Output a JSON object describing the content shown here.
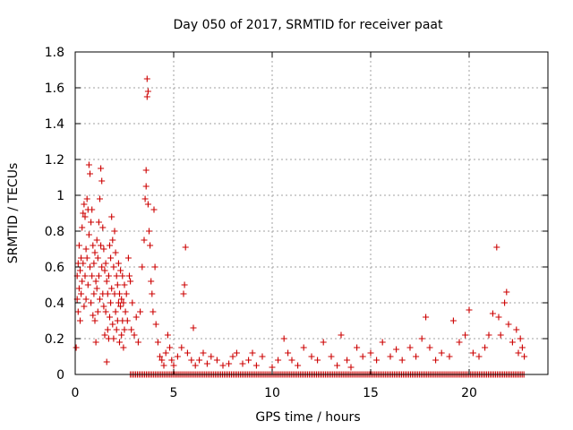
{
  "chart_data": {
    "type": "scatter",
    "title": "Day 050 of 2017, SRMTID for receiver paat",
    "xlabel": "GPS time / hours",
    "ylabel": "SRMTID / TECUs",
    "xlim": [
      0,
      24
    ],
    "ylim": [
      0,
      1.8
    ],
    "x_ticks": [
      0,
      5,
      10,
      15,
      20
    ],
    "x_tick_labels": [
      "0",
      "5",
      "10",
      "15",
      "20"
    ],
    "y_ticks": [
      0,
      0.2,
      0.4,
      0.6,
      0.8,
      1,
      1.2,
      1.4,
      1.6,
      1.8
    ],
    "y_tick_labels": [
      "0",
      "0.2",
      "0.4",
      "0.6",
      "0.8",
      "1",
      "1.2",
      "1.4",
      "1.6",
      "1.8"
    ],
    "grid": true,
    "marker": "+",
    "series": [
      {
        "name": "SRMTID",
        "color": "#cc0000",
        "points": [
          [
            0.05,
            0.15
          ],
          [
            0.1,
            0.55
          ],
          [
            0.1,
            0.42
          ],
          [
            0.15,
            0.62
          ],
          [
            0.15,
            0.35
          ],
          [
            0.2,
            0.48
          ],
          [
            0.2,
            0.72
          ],
          [
            0.25,
            0.58
          ],
          [
            0.25,
            0.3
          ],
          [
            0.3,
            0.65
          ],
          [
            0.3,
            0.45
          ],
          [
            0.35,
            0.52
          ],
          [
            0.35,
            0.82
          ],
          [
            0.4,
            0.9
          ],
          [
            0.4,
            0.62
          ],
          [
            0.45,
            0.95
          ],
          [
            0.45,
            0.38
          ],
          [
            0.5,
            0.88
          ],
          [
            0.5,
            0.55
          ],
          [
            0.55,
            0.7
          ],
          [
            0.55,
            0.42
          ],
          [
            0.6,
            0.98
          ],
          [
            0.6,
            0.65
          ],
          [
            0.65,
            0.92
          ],
          [
            0.65,
            0.5
          ],
          [
            0.7,
            1.17
          ],
          [
            0.7,
            0.78
          ],
          [
            0.75,
            1.12
          ],
          [
            0.75,
            0.6
          ],
          [
            0.8,
            0.85
          ],
          [
            0.8,
            0.4
          ],
          [
            0.85,
            0.92
          ],
          [
            0.85,
            0.55
          ],
          [
            0.9,
            0.72
          ],
          [
            0.9,
            0.33
          ],
          [
            0.95,
            0.62
          ],
          [
            0.95,
            0.45
          ],
          [
            1.0,
            0.68
          ],
          [
            1.0,
            0.3
          ],
          [
            1.05,
            0.52
          ],
          [
            1.05,
            0.18
          ],
          [
            1.1,
            0.75
          ],
          [
            1.1,
            0.48
          ],
          [
            1.15,
            0.65
          ],
          [
            1.15,
            0.35
          ],
          [
            1.2,
            0.85
          ],
          [
            1.2,
            0.55
          ],
          [
            1.25,
            0.98
          ],
          [
            1.25,
            0.42
          ],
          [
            1.3,
            1.15
          ],
          [
            1.3,
            0.72
          ],
          [
            1.35,
            1.08
          ],
          [
            1.35,
            0.6
          ],
          [
            1.4,
            0.82
          ],
          [
            1.4,
            0.45
          ],
          [
            1.45,
            0.7
          ],
          [
            1.45,
            0.38
          ],
          [
            1.5,
            0.58
          ],
          [
            1.5,
            0.22
          ],
          [
            1.55,
            0.62
          ],
          [
            1.55,
            0.35
          ],
          [
            1.6,
            0.52
          ],
          [
            1.6,
            0.07
          ],
          [
            1.65,
            0.45
          ],
          [
            1.65,
            0.25
          ],
          [
            1.7,
            0.55
          ],
          [
            1.7,
            0.2
          ],
          [
            1.75,
            0.72
          ],
          [
            1.75,
            0.32
          ],
          [
            1.8,
            0.65
          ],
          [
            1.8,
            0.4
          ],
          [
            1.85,
            0.88
          ],
          [
            1.85,
            0.48
          ],
          [
            1.9,
            0.75
          ],
          [
            1.9,
            0.28
          ],
          [
            1.95,
            0.6
          ],
          [
            1.95,
            0.2
          ],
          [
            2.0,
            0.8
          ],
          [
            2.0,
            0.45
          ],
          [
            2.05,
            0.68
          ],
          [
            2.05,
            0.35
          ],
          [
            2.1,
            0.55
          ],
          [
            2.1,
            0.25
          ],
          [
            2.15,
            0.5
          ],
          [
            2.15,
            0.3
          ],
          [
            2.2,
            0.62
          ],
          [
            2.2,
            0.4
          ],
          [
            2.25,
            0.45
          ],
          [
            2.25,
            0.18
          ],
          [
            2.3,
            0.58
          ],
          [
            2.3,
            0.38
          ],
          [
            2.35,
            0.42
          ],
          [
            2.35,
            0.22
          ],
          [
            2.4,
            0.55
          ],
          [
            2.4,
            0.3
          ],
          [
            2.45,
            0.4
          ],
          [
            2.45,
            0.15
          ],
          [
            2.5,
            0.5
          ],
          [
            2.5,
            0.25
          ],
          [
            2.55,
            0.35
          ],
          [
            2.6,
            0.45
          ],
          [
            2.65,
            0.3
          ],
          [
            2.7,
            0.65
          ],
          [
            2.75,
            0.55
          ],
          [
            2.8,
            0.52
          ],
          [
            2.85,
            0.25
          ],
          [
            2.9,
            0.4
          ],
          [
            3.0,
            0.22
          ],
          [
            3.1,
            0.32
          ],
          [
            3.2,
            0.18
          ],
          [
            3.3,
            0.35
          ],
          [
            3.4,
            0.6
          ],
          [
            3.5,
            0.75
          ],
          [
            3.55,
            0.98
          ],
          [
            3.6,
            1.05
          ],
          [
            3.6,
            1.14
          ],
          [
            3.65,
            1.65
          ],
          [
            3.65,
            1.55
          ],
          [
            3.7,
            1.58
          ],
          [
            3.7,
            0.95
          ],
          [
            3.75,
            0.8
          ],
          [
            3.8,
            0.72
          ],
          [
            3.85,
            0.52
          ],
          [
            3.9,
            0.45
          ],
          [
            3.95,
            0.35
          ],
          [
            4.0,
            0.92
          ],
          [
            4.05,
            0.6
          ],
          [
            4.1,
            0.28
          ],
          [
            4.2,
            0.18
          ],
          [
            4.3,
            0.1
          ],
          [
            4.4,
            0.08
          ],
          [
            4.5,
            0.05
          ],
          [
            4.6,
            0.12
          ],
          [
            4.7,
            0.22
          ],
          [
            4.8,
            0.15
          ],
          [
            4.9,
            0.08
          ],
          [
            5.0,
            0.05
          ],
          [
            5.2,
            0.1
          ],
          [
            5.4,
            0.15
          ],
          [
            5.5,
            0.45
          ],
          [
            5.55,
            0.5
          ],
          [
            5.6,
            0.71
          ],
          [
            5.7,
            0.12
          ],
          [
            5.9,
            0.08
          ],
          [
            6.0,
            0.26
          ],
          [
            6.1,
            0.05
          ],
          [
            6.3,
            0.08
          ],
          [
            6.5,
            0.12
          ],
          [
            6.7,
            0.06
          ],
          [
            6.9,
            0.1
          ],
          [
            7.2,
            0.08
          ],
          [
            7.5,
            0.05
          ],
          [
            7.8,
            0.06
          ],
          [
            8.0,
            0.1
          ],
          [
            8.2,
            0.12
          ],
          [
            8.5,
            0.06
          ],
          [
            8.8,
            0.08
          ],
          [
            9.0,
            0.12
          ],
          [
            9.2,
            0.05
          ],
          [
            9.5,
            0.1
          ],
          [
            10.0,
            0.04
          ],
          [
            10.3,
            0.08
          ],
          [
            10.6,
            0.2
          ],
          [
            10.8,
            0.12
          ],
          [
            11.0,
            0.08
          ],
          [
            11.3,
            0.05
          ],
          [
            11.6,
            0.15
          ],
          [
            12.0,
            0.1
          ],
          [
            12.3,
            0.08
          ],
          [
            12.6,
            0.18
          ],
          [
            13.0,
            0.1
          ],
          [
            13.3,
            0.05
          ],
          [
            13.5,
            0.22
          ],
          [
            13.8,
            0.08
          ],
          [
            14.0,
            0.04
          ],
          [
            14.3,
            0.15
          ],
          [
            14.6,
            0.1
          ],
          [
            15.0,
            0.12
          ],
          [
            15.3,
            0.08
          ],
          [
            15.6,
            0.18
          ],
          [
            16.0,
            0.1
          ],
          [
            16.3,
            0.14
          ],
          [
            16.6,
            0.08
          ],
          [
            17.0,
            0.15
          ],
          [
            17.3,
            0.1
          ],
          [
            17.6,
            0.2
          ],
          [
            17.8,
            0.32
          ],
          [
            18.0,
            0.15
          ],
          [
            18.3,
            0.08
          ],
          [
            18.6,
            0.12
          ],
          [
            19.0,
            0.1
          ],
          [
            19.2,
            0.3
          ],
          [
            19.5,
            0.18
          ],
          [
            19.8,
            0.22
          ],
          [
            20.0,
            0.36
          ],
          [
            20.2,
            0.12
          ],
          [
            20.5,
            0.1
          ],
          [
            20.8,
            0.15
          ],
          [
            21.0,
            0.22
          ],
          [
            21.2,
            0.34
          ],
          [
            21.4,
            0.71
          ],
          [
            21.5,
            0.32
          ],
          [
            21.6,
            0.22
          ],
          [
            21.8,
            0.4
          ],
          [
            21.9,
            0.46
          ],
          [
            22.0,
            0.28
          ],
          [
            22.2,
            0.18
          ],
          [
            22.4,
            0.25
          ],
          [
            22.5,
            0.12
          ],
          [
            22.6,
            0.2
          ],
          [
            22.7,
            0.15
          ],
          [
            22.8,
            0.1
          ]
        ]
      }
    ],
    "zero_band": {
      "x_start": 2.8,
      "x_end": 22.8,
      "y": 0
    }
  }
}
